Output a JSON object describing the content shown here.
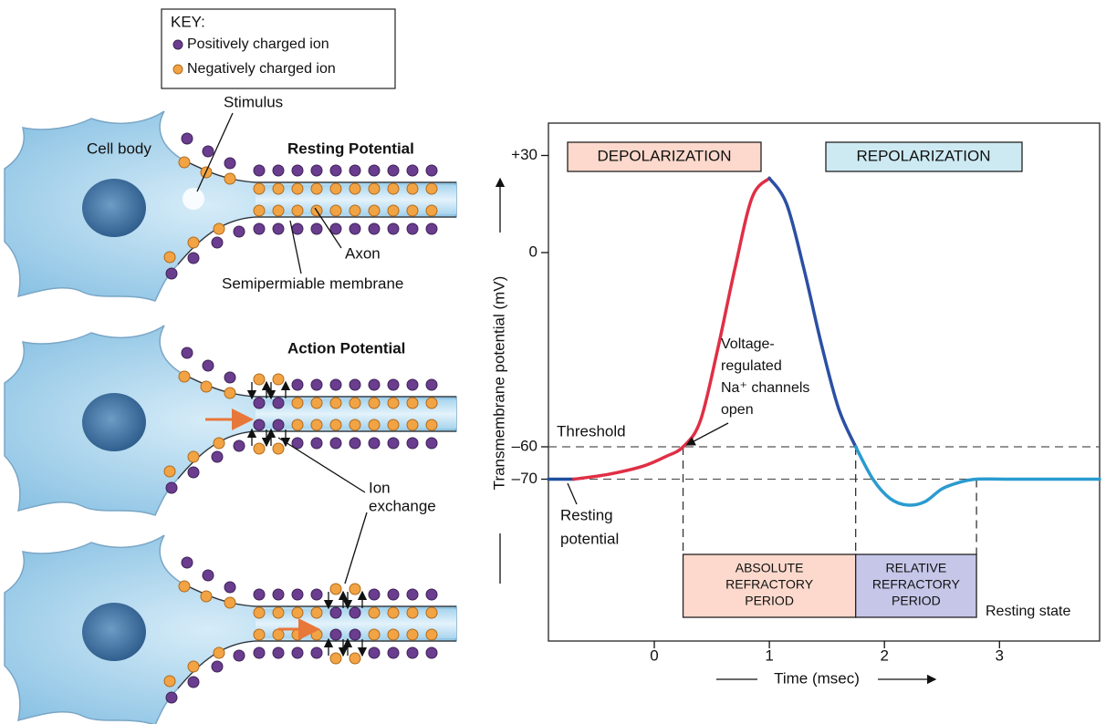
{
  "diagram": {
    "key_title": "KEY:",
    "key_items": [
      "Positively charged ion",
      "Negatively charged ion"
    ],
    "stimulus": "Stimulus",
    "cell_body": "Cell body",
    "resting_potential": "Resting Potential",
    "axon": "Axon",
    "membrane": "Semipermiable membrane",
    "action_potential": "Action Potential",
    "ion_exchange": [
      "Ion",
      "exchange"
    ]
  },
  "chart_data": {
    "type": "line",
    "x_label": "Time (msec)",
    "y_label": "Transmembrane potential (mV)",
    "x": [
      -0.92,
      -0.7,
      -0.4,
      -0.1,
      0.1,
      0.25,
      0.4,
      0.55,
      0.7,
      0.85,
      1.0,
      1.15,
      1.3,
      1.45,
      1.6,
      1.75,
      1.9,
      2.05,
      2.2,
      2.35,
      2.5,
      2.65,
      2.8,
      3.1,
      3.5,
      3.87
    ],
    "series": [
      {
        "color": "#1d4f9c",
        "values": [
          -70,
          -70,
          null,
          null,
          null,
          null,
          null,
          null,
          null,
          null,
          null,
          null,
          null,
          null,
          null,
          null,
          null,
          null,
          null,
          null,
          null,
          null,
          null,
          null,
          null,
          null
        ]
      },
      {
        "color": "#e02f45",
        "values": [
          null,
          -70,
          -68.5,
          -66,
          -63,
          -60,
          -52,
          -30,
          -5,
          17,
          23,
          null,
          null,
          null,
          null,
          null,
          null,
          null,
          null,
          null,
          null,
          null,
          null,
          null,
          null,
          null
        ]
      },
      {
        "color": "#2b4fa3",
        "values": [
          null,
          null,
          null,
          null,
          null,
          null,
          null,
          null,
          null,
          null,
          23,
          15,
          -5,
          -28,
          -48,
          -60,
          null,
          null,
          null,
          null,
          null,
          null,
          null,
          null,
          null,
          null
        ]
      },
      {
        "color": "#2a9bd0",
        "values": [
          null,
          null,
          null,
          null,
          null,
          null,
          null,
          null,
          null,
          null,
          null,
          null,
          null,
          null,
          null,
          -60,
          -70,
          -76,
          -78,
          -77,
          -73,
          -71,
          -70,
          -70,
          -70,
          -70
        ]
      }
    ],
    "xlim": [
      -0.92,
      3.87
    ],
    "ylim": [
      -120,
      40
    ],
    "xticks": [
      0,
      1,
      2,
      3
    ],
    "yticks": [
      {
        "value": 30,
        "label": "+30"
      },
      0,
      {
        "value": -60,
        "label": "–60"
      },
      {
        "value": -70,
        "label": "–70"
      }
    ],
    "reference_lines": [
      -60,
      -70
    ],
    "refractory_bounds": [
      0.25,
      1.75,
      2.8
    ],
    "annotations": {
      "depolarization": "DEPOLARIZATION",
      "repolarization": "REPOLARIZATION",
      "threshold": "Threshold",
      "resting_potential": [
        "Resting",
        "potential"
      ],
      "channels": [
        "Voltage-",
        "regulated",
        "Na⁺ channels",
        "open"
      ],
      "absolute_refractory": [
        "ABSOLUTE",
        "REFRACTORY",
        "PERIOD"
      ],
      "relative_refractory": [
        "RELATIVE",
        "REFRACTORY",
        "PERIOD"
      ],
      "resting_state": "Resting state"
    }
  }
}
